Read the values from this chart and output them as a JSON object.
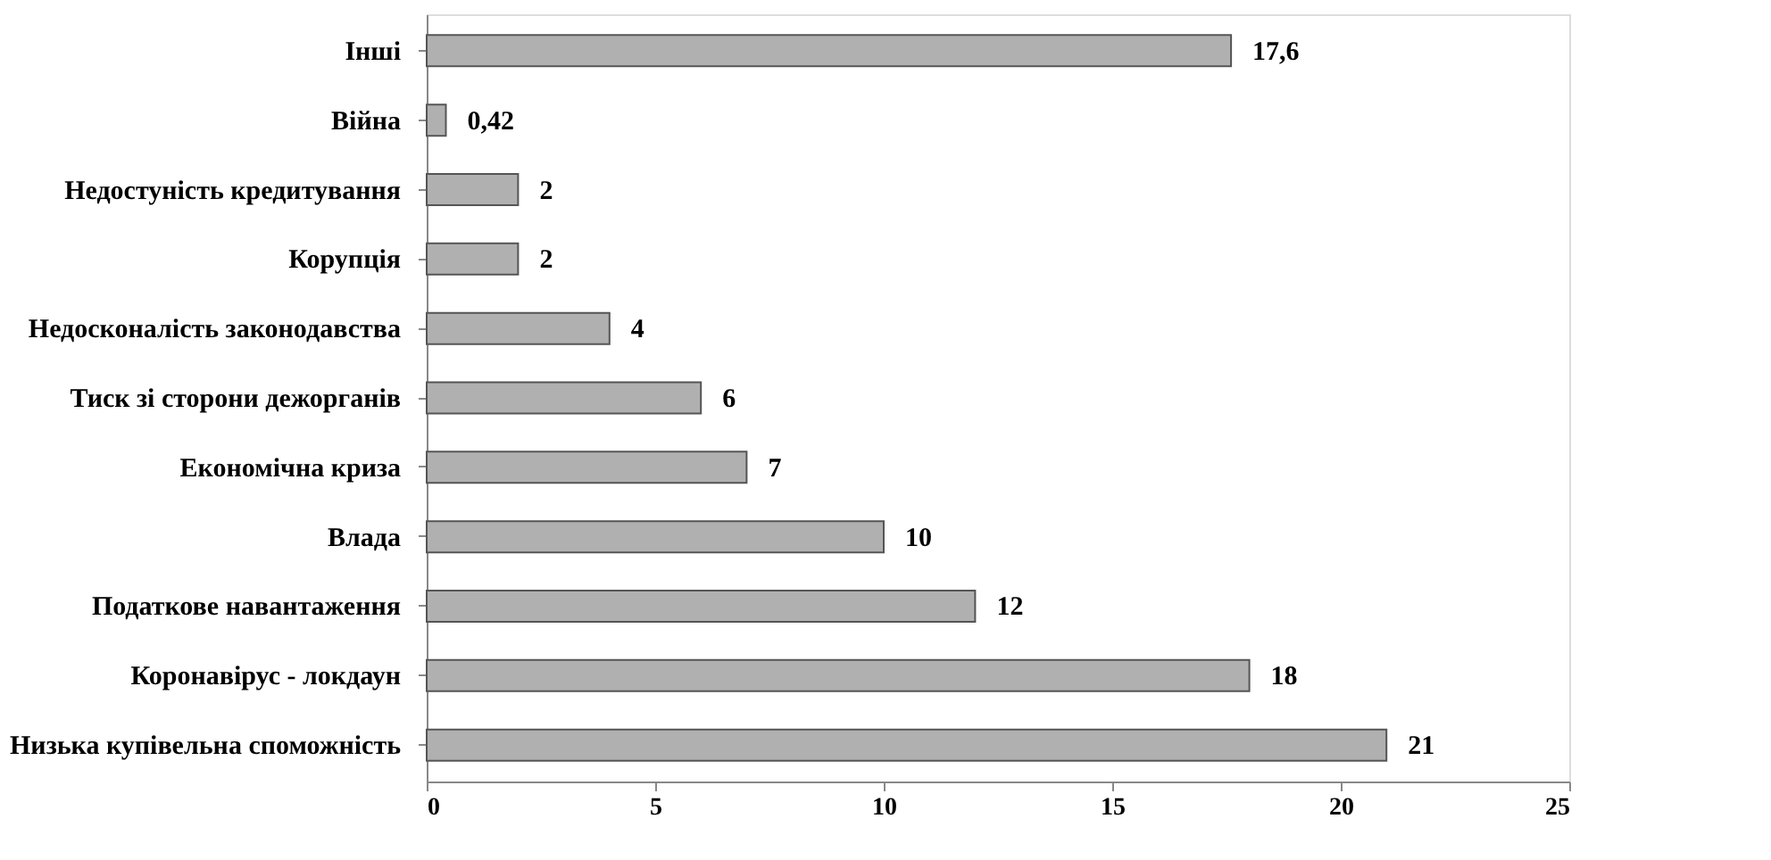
{
  "chart_data": {
    "type": "bar",
    "orientation": "horizontal",
    "categories": [
      "Інші",
      "Війна",
      "Недостуність кредитування",
      "Корупція",
      "Недосконалість законодавства",
      "Тиск зі сторони дежорганів",
      "Економічна криза",
      "Влада",
      "Податкове навантаження",
      "Коронавірус - локдаун",
      "Низька купівельна споможність"
    ],
    "values": [
      17.6,
      0.42,
      2,
      2,
      4,
      6,
      7,
      10,
      12,
      18,
      21
    ],
    "value_labels": [
      "17,6",
      "0,42",
      "2",
      "2",
      "4",
      "6",
      "7",
      "10",
      "12",
      "18",
      "21"
    ],
    "color": "#b0b0b0",
    "xlim": [
      0,
      25
    ],
    "xticks": [
      0,
      5,
      10,
      15,
      20,
      25
    ],
    "grid": false
  }
}
